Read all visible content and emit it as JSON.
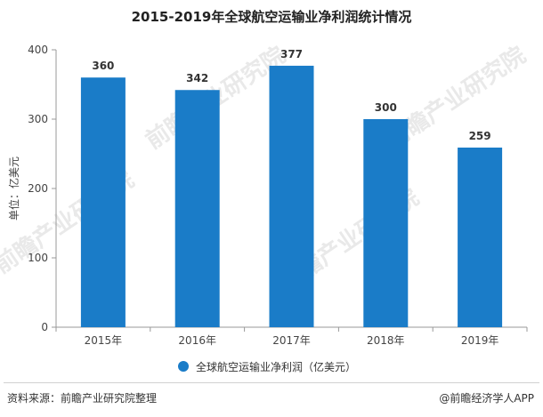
{
  "watermark": {
    "text": "前瞻产业研究院"
  },
  "chart_data": {
    "type": "bar",
    "title": "2015-2019年全球航空运输业净利润统计情况",
    "ylabel": "单位：亿美元",
    "xlabel": "",
    "categories": [
      "2015年",
      "2016年",
      "2017年",
      "2018年",
      "2019年"
    ],
    "series": [
      {
        "name": "全球航空运输业净利润（亿美元）",
        "values": [
          360,
          342,
          377,
          300,
          259
        ]
      }
    ],
    "ylim": [
      0,
      400
    ],
    "yticks": [
      0,
      100,
      200,
      300,
      400
    ],
    "data_labels": [
      "360",
      "342",
      "377",
      "300",
      "259"
    ],
    "bar_color": "#1a7cc8",
    "grid": false,
    "legend_position": "bottom"
  },
  "footer": {
    "source": "资料来源：前瞻产业研究院整理",
    "credit": "@前瞻经济学人APP"
  }
}
